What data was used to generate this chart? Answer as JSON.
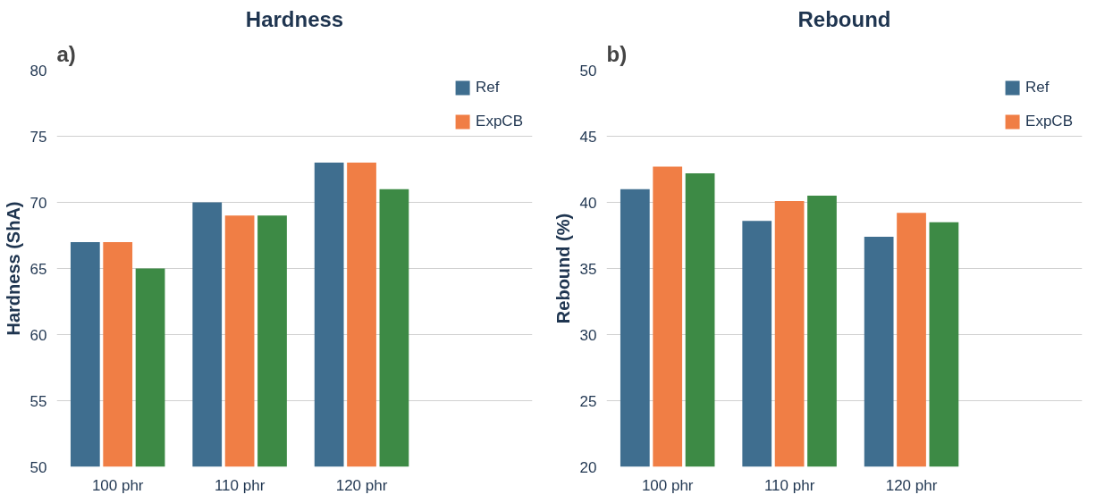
{
  "chart_data": [
    {
      "type": "bar",
      "title": "Hardness",
      "ylabel": "Hardness (ShA)",
      "annotations": [
        "a)"
      ],
      "categories": [
        "100 phr",
        "110 phr",
        "120 phr"
      ],
      "series": [
        {
          "name": "Ref",
          "color": "#3f6e8f",
          "values": [
            67,
            70,
            73
          ]
        },
        {
          "name": "ExpCB",
          "color": "#f07e45",
          "values": [
            67,
            69,
            73
          ]
        },
        {
          "color": "#3d8a45",
          "values": [
            65,
            69,
            71
          ]
        }
      ],
      "ylim": [
        50,
        80
      ],
      "yticks": [
        50,
        55,
        60,
        65,
        70,
        75,
        80
      ],
      "grid": "y",
      "legend": "right"
    },
    {
      "type": "bar",
      "title": "Rebound",
      "ylabel": "Rebound (%)",
      "annotations": [
        "b)"
      ],
      "categories": [
        "100 phr",
        "110 phr",
        "120 phr"
      ],
      "series": [
        {
          "name": "Ref",
          "color": "#3f6e8f",
          "values": [
            41,
            38.6,
            37.4
          ]
        },
        {
          "name": "ExpCB",
          "color": "#f07e45",
          "values": [
            42.7,
            40.1,
            39.2
          ]
        },
        {
          "color": "#3d8a45",
          "values": [
            42.2,
            40.5,
            38.5
          ]
        }
      ],
      "ylim": [
        20,
        50
      ],
      "yticks": [
        20,
        25,
        30,
        35,
        40,
        45,
        50
      ],
      "grid": "y",
      "legend": "right"
    }
  ]
}
